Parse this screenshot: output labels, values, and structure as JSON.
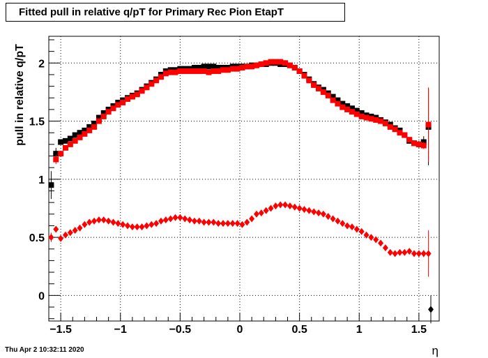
{
  "chart_data": {
    "type": "scatter",
    "title": "Fitted pull in relative q/pT for Primary Rec Pion EtapT",
    "xlabel": "η",
    "ylabel": "pull in relative q/pT",
    "xlim": [
      -1.6,
      1.67
    ],
    "ylim": [
      -0.22,
      2.23
    ],
    "x_ticks": [
      -1.5,
      -1,
      -0.5,
      0,
      0.5,
      1,
      1.5
    ],
    "x_tick_labels": [
      "−1.5",
      "−1",
      "−0.5",
      "0",
      "0.5",
      "1",
      "1.5"
    ],
    "y_ticks": [
      0,
      0.5,
      1,
      1.5,
      2
    ],
    "y_tick_labels": [
      "0",
      "0.5",
      "1",
      "1.5",
      "2"
    ],
    "grid": true,
    "legend": "none",
    "series": [
      {
        "color": "#000000",
        "marker": "square",
        "x": [
          -1.58,
          -1.54,
          -1.5,
          -1.46,
          -1.42,
          -1.38,
          -1.34,
          -1.3,
          -1.26,
          -1.22,
          -1.18,
          -1.14,
          -1.1,
          -1.06,
          -1.02,
          -0.98,
          -0.94,
          -0.9,
          -0.86,
          -0.82,
          -0.78,
          -0.74,
          -0.7,
          -0.66,
          -0.62,
          -0.58,
          -0.54,
          -0.5,
          -0.46,
          -0.42,
          -0.38,
          -0.34,
          -0.3,
          -0.26,
          -0.22,
          -0.18,
          -0.14,
          -0.1,
          -0.06,
          -0.02,
          0.02,
          0.06,
          0.1,
          0.14,
          0.18,
          0.22,
          0.26,
          0.3,
          0.34,
          0.38,
          0.42,
          0.46,
          0.5,
          0.54,
          0.58,
          0.62,
          0.66,
          0.7,
          0.74,
          0.78,
          0.82,
          0.86,
          0.9,
          0.94,
          0.98,
          1.02,
          1.06,
          1.1,
          1.14,
          1.18,
          1.22,
          1.26,
          1.3,
          1.34,
          1.38,
          1.42,
          1.46,
          1.5,
          1.54,
          1.58
        ],
        "y": [
          0.95,
          1.22,
          1.32,
          1.33,
          1.35,
          1.38,
          1.4,
          1.42,
          1.45,
          1.48,
          1.53,
          1.57,
          1.6,
          1.63,
          1.66,
          1.68,
          1.7,
          1.72,
          1.74,
          1.77,
          1.8,
          1.83,
          1.86,
          1.9,
          1.93,
          1.94,
          1.94,
          1.95,
          1.95,
          1.95,
          1.96,
          1.96,
          1.97,
          1.97,
          1.97,
          1.96,
          1.96,
          1.96,
          1.97,
          1.97,
          1.97,
          1.97,
          1.98,
          1.98,
          1.99,
          1.99,
          2.0,
          2.0,
          1.99,
          1.99,
          1.98,
          1.96,
          1.93,
          1.9,
          1.86,
          1.82,
          1.79,
          1.77,
          1.74,
          1.71,
          1.68,
          1.65,
          1.63,
          1.61,
          1.59,
          1.57,
          1.55,
          1.54,
          1.53,
          1.51,
          1.49,
          1.47,
          1.44,
          1.42,
          1.38,
          1.33,
          1.31,
          1.3,
          1.32,
          1.45
        ],
        "yerr": [
          0.12,
          0.05,
          0.02,
          0.02,
          0.02,
          0.02,
          0.02,
          0.02,
          0.02,
          0.02,
          0.02,
          0.02,
          0.02,
          0.02,
          0.02,
          0.02,
          0.02,
          0.02,
          0.02,
          0.02,
          0.02,
          0.02,
          0.02,
          0.02,
          0.02,
          0.02,
          0.02,
          0.02,
          0.02,
          0.02,
          0.02,
          0.02,
          0.02,
          0.02,
          0.02,
          0.02,
          0.02,
          0.02,
          0.02,
          0.02,
          0.02,
          0.02,
          0.02,
          0.02,
          0.02,
          0.02,
          0.02,
          0.02,
          0.02,
          0.02,
          0.02,
          0.02,
          0.02,
          0.02,
          0.02,
          0.02,
          0.02,
          0.02,
          0.02,
          0.02,
          0.02,
          0.02,
          0.02,
          0.02,
          0.02,
          0.02,
          0.02,
          0.02,
          0.02,
          0.02,
          0.02,
          0.02,
          0.02,
          0.02,
          0.02,
          0.02,
          0.02,
          0.03,
          0.05,
          0.33
        ]
      },
      {
        "color": "#ff0000",
        "marker": "square",
        "x": [
          -1.54,
          -1.5,
          -1.46,
          -1.42,
          -1.38,
          -1.34,
          -1.3,
          -1.26,
          -1.22,
          -1.18,
          -1.14,
          -1.1,
          -1.06,
          -1.02,
          -0.98,
          -0.94,
          -0.9,
          -0.86,
          -0.82,
          -0.78,
          -0.74,
          -0.7,
          -0.66,
          -0.62,
          -0.58,
          -0.54,
          -0.5,
          -0.46,
          -0.42,
          -0.38,
          -0.34,
          -0.3,
          -0.26,
          -0.22,
          -0.18,
          -0.14,
          -0.1,
          -0.06,
          -0.02,
          0.02,
          0.06,
          0.1,
          0.14,
          0.18,
          0.22,
          0.26,
          0.3,
          0.34,
          0.38,
          0.42,
          0.46,
          0.5,
          0.54,
          0.58,
          0.62,
          0.66,
          0.7,
          0.74,
          0.78,
          0.82,
          0.86,
          0.9,
          0.94,
          0.98,
          1.02,
          1.06,
          1.1,
          1.14,
          1.18,
          1.22,
          1.26,
          1.3,
          1.34,
          1.38,
          1.42,
          1.46,
          1.5,
          1.54,
          1.58
        ],
        "y": [
          1.17,
          1.22,
          1.27,
          1.3,
          1.33,
          1.36,
          1.39,
          1.42,
          1.45,
          1.5,
          1.54,
          1.58,
          1.61,
          1.64,
          1.66,
          1.69,
          1.71,
          1.73,
          1.76,
          1.79,
          1.82,
          1.85,
          1.88,
          1.91,
          1.92,
          1.92,
          1.93,
          1.93,
          1.93,
          1.93,
          1.93,
          1.93,
          1.92,
          1.93,
          1.93,
          1.94,
          1.94,
          1.95,
          1.95,
          1.96,
          1.97,
          1.97,
          1.98,
          1.99,
          2.0,
          2.01,
          2.01,
          2.01,
          2.0,
          1.98,
          1.96,
          1.93,
          1.89,
          1.85,
          1.81,
          1.78,
          1.75,
          1.72,
          1.68,
          1.65,
          1.62,
          1.6,
          1.58,
          1.56,
          1.54,
          1.53,
          1.52,
          1.51,
          1.5,
          1.48,
          1.45,
          1.43,
          1.4,
          1.38,
          1.34,
          1.31,
          1.3,
          1.29,
          1.47
        ],
        "yerr": [
          0.04,
          0.02,
          0.02,
          0.02,
          0.02,
          0.02,
          0.02,
          0.02,
          0.02,
          0.02,
          0.02,
          0.02,
          0.02,
          0.02,
          0.02,
          0.02,
          0.02,
          0.02,
          0.02,
          0.02,
          0.02,
          0.02,
          0.02,
          0.02,
          0.02,
          0.02,
          0.02,
          0.02,
          0.02,
          0.02,
          0.02,
          0.02,
          0.02,
          0.02,
          0.02,
          0.02,
          0.02,
          0.02,
          0.02,
          0.02,
          0.02,
          0.02,
          0.02,
          0.02,
          0.02,
          0.02,
          0.02,
          0.02,
          0.02,
          0.02,
          0.02,
          0.02,
          0.02,
          0.02,
          0.02,
          0.02,
          0.02,
          0.02,
          0.02,
          0.02,
          0.02,
          0.02,
          0.02,
          0.02,
          0.02,
          0.02,
          0.02,
          0.02,
          0.02,
          0.02,
          0.02,
          0.02,
          0.02,
          0.02,
          0.02,
          0.02,
          0.02,
          0.03,
          0.32
        ]
      },
      {
        "color": "#000000",
        "marker": "diamond",
        "x": [
          1.6
        ],
        "y": [
          -0.12
        ],
        "yerr": [
          0.12
        ]
      },
      {
        "color": "#ff0000",
        "marker": "diamond",
        "x": [
          -1.58,
          -1.54,
          -1.5,
          -1.46,
          -1.42,
          -1.38,
          -1.34,
          -1.3,
          -1.26,
          -1.22,
          -1.18,
          -1.14,
          -1.1,
          -1.06,
          -1.02,
          -0.98,
          -0.94,
          -0.9,
          -0.86,
          -0.82,
          -0.78,
          -0.74,
          -0.7,
          -0.66,
          -0.62,
          -0.58,
          -0.54,
          -0.5,
          -0.46,
          -0.42,
          -0.38,
          -0.34,
          -0.3,
          -0.26,
          -0.22,
          -0.18,
          -0.14,
          -0.1,
          -0.06,
          -0.02,
          0.02,
          0.06,
          0.1,
          0.14,
          0.18,
          0.22,
          0.26,
          0.3,
          0.34,
          0.38,
          0.42,
          0.46,
          0.5,
          0.54,
          0.58,
          0.62,
          0.66,
          0.7,
          0.74,
          0.78,
          0.82,
          0.86,
          0.9,
          0.94,
          0.98,
          1.02,
          1.06,
          1.1,
          1.14,
          1.18,
          1.22,
          1.26,
          1.3,
          1.34,
          1.38,
          1.42,
          1.46,
          1.5,
          1.54,
          1.58
        ],
        "y": [
          0.5,
          0.57,
          0.49,
          0.52,
          0.54,
          0.56,
          0.58,
          0.61,
          0.63,
          0.64,
          0.65,
          0.65,
          0.64,
          0.63,
          0.62,
          0.61,
          0.6,
          0.59,
          0.59,
          0.59,
          0.6,
          0.61,
          0.62,
          0.64,
          0.65,
          0.66,
          0.67,
          0.67,
          0.66,
          0.65,
          0.64,
          0.64,
          0.63,
          0.63,
          0.63,
          0.62,
          0.62,
          0.62,
          0.62,
          0.62,
          0.61,
          0.63,
          0.66,
          0.7,
          0.71,
          0.73,
          0.75,
          0.77,
          0.78,
          0.78,
          0.77,
          0.76,
          0.75,
          0.74,
          0.73,
          0.72,
          0.71,
          0.7,
          0.68,
          0.66,
          0.64,
          0.62,
          0.6,
          0.59,
          0.57,
          0.55,
          0.52,
          0.5,
          0.48,
          0.45,
          0.41,
          0.37,
          0.36,
          0.37,
          0.37,
          0.38,
          0.36,
          0.36,
          0.36,
          0.36
        ],
        "yerr": [
          0.04,
          0.02,
          0.02,
          0.02,
          0.02,
          0.02,
          0.02,
          0.02,
          0.02,
          0.02,
          0.02,
          0.02,
          0.02,
          0.02,
          0.02,
          0.02,
          0.02,
          0.02,
          0.02,
          0.02,
          0.02,
          0.02,
          0.02,
          0.02,
          0.02,
          0.02,
          0.02,
          0.02,
          0.02,
          0.02,
          0.02,
          0.02,
          0.02,
          0.02,
          0.02,
          0.02,
          0.02,
          0.02,
          0.02,
          0.02,
          0.02,
          0.02,
          0.02,
          0.02,
          0.02,
          0.02,
          0.02,
          0.02,
          0.02,
          0.02,
          0.02,
          0.02,
          0.02,
          0.02,
          0.02,
          0.02,
          0.02,
          0.02,
          0.02,
          0.02,
          0.02,
          0.02,
          0.02,
          0.02,
          0.02,
          0.02,
          0.02,
          0.02,
          0.02,
          0.02,
          0.02,
          0.02,
          0.02,
          0.02,
          0.02,
          0.02,
          0.02,
          0.02,
          0.03,
          0.2
        ]
      }
    ]
  },
  "footer": {
    "timestamp": "Thu Apr  2 10:32:11 2020"
  }
}
